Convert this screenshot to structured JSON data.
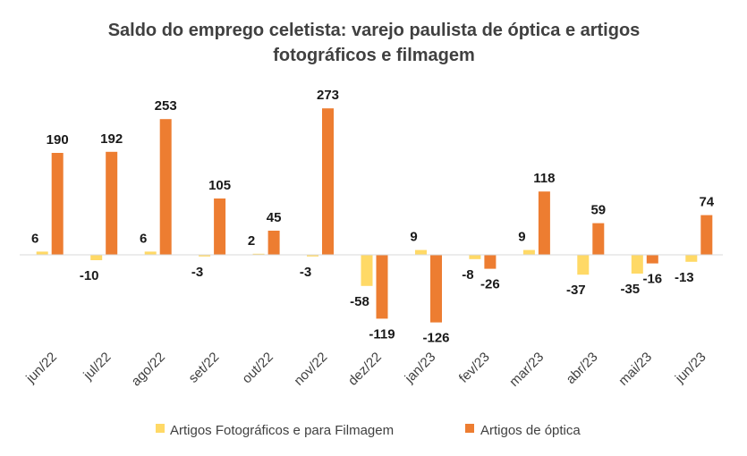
{
  "chart_data": {
    "type": "bar",
    "title_lines": [
      "Saldo do emprego celetista: varejo paulista de óptica e artigos",
      "fotográficos e filmagem"
    ],
    "categories": [
      "jun/22",
      "jul/22",
      "ago/22",
      "set/22",
      "out/22",
      "nov/22",
      "dez/22",
      "jan/23",
      "fev/23",
      "mar/23",
      "abr/23",
      "mai/23",
      "jun/23"
    ],
    "series": [
      {
        "name": "Artigos Fotográficos e para Filmagem",
        "color": "#FFD966",
        "values": [
          6,
          -10,
          6,
          -3,
          2,
          -3,
          -58,
          9,
          -8,
          9,
          -37,
          -35,
          -13
        ]
      },
      {
        "name": "Artigos de óptica",
        "color": "#ED7D31",
        "values": [
          190,
          192,
          253,
          105,
          45,
          273,
          -119,
          -126,
          -26,
          118,
          59,
          -16,
          74
        ]
      }
    ],
    "ylim": [
      -140,
      300
    ],
    "grid": false,
    "legend_position": "bottom",
    "data_labels": true
  }
}
